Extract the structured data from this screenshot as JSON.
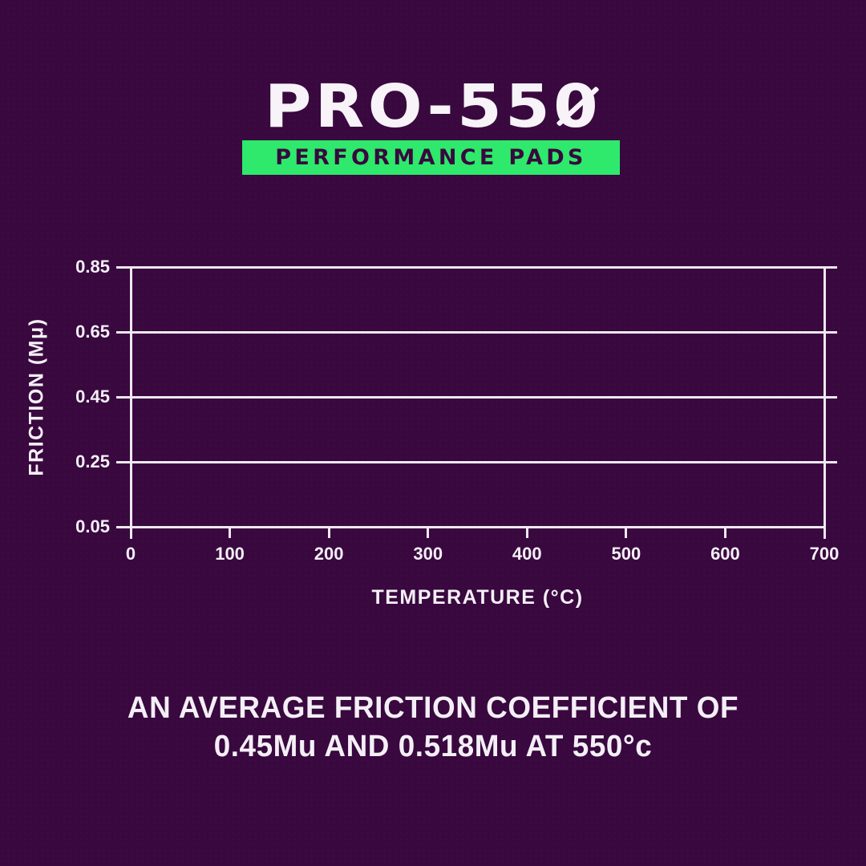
{
  "colors": {
    "background": "#38083E",
    "accent_green": "#2EE96B",
    "text": "#F4EFF6",
    "grid_lines": "#EFE9F1"
  },
  "header": {
    "brand_prefix": "PRO-55",
    "brand_zero": "0",
    "badge_label": "PERFORMANCE PADS"
  },
  "chart_data": {
    "type": "line",
    "title": "",
    "xlabel": "TEMPERATURE (°C)",
    "ylabel": "FRICTION (Mμ)",
    "xlim": [
      0,
      700
    ],
    "ylim": [
      0.05,
      0.85
    ],
    "x_ticks": [
      0,
      100,
      200,
      300,
      400,
      500,
      600,
      700
    ],
    "y_ticks": [
      0.05,
      0.25,
      0.45,
      0.65,
      0.85
    ],
    "grid": "horizontal gridlines only, ticks on left, right and bottom axes",
    "legend": "none",
    "series": []
  },
  "caption": {
    "line1": "AN AVERAGE FRICTION COEFFICIENT OF",
    "line2": "0.45Mu AND 0.518Mu AT 550°c"
  }
}
